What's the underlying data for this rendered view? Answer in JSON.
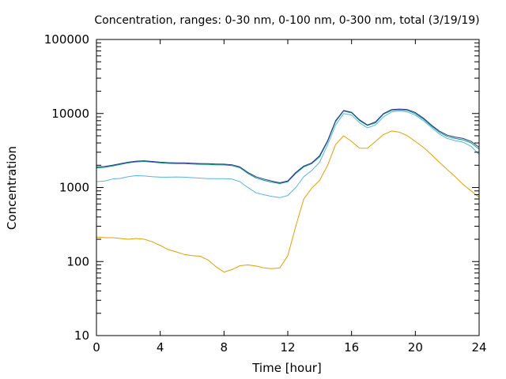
{
  "chart_data": {
    "type": "line",
    "title": "Concentration, ranges: 0-30 nm, 0-100 nm, 0-300 nm, total (3/19/19)",
    "xlabel": "Time [hour]",
    "ylabel": "Concentration",
    "xlim": [
      0,
      24
    ],
    "ylim": [
      10,
      100000
    ],
    "yscale": "log",
    "grid": false,
    "legend": "none",
    "x_ticks": [
      0,
      4,
      8,
      12,
      16,
      20,
      24
    ],
    "x_tick_labels": [
      "0",
      "4",
      "8",
      "12",
      "16",
      "20",
      "24"
    ],
    "y_ticks": [
      10,
      100,
      1000,
      10000,
      100000
    ],
    "y_tick_labels": [
      "10",
      "100",
      "1000",
      "10000",
      "100000"
    ],
    "series": [
      {
        "color": "#e69f00",
        "x": [
          0,
          0.5,
          1,
          1.5,
          2,
          2.5,
          3,
          3.5,
          4,
          4.5,
          5,
          5.5,
          6,
          6.5,
          7,
          7.5,
          8,
          8.5,
          9,
          9.5,
          10,
          10.5,
          11,
          11.5,
          12,
          12.5,
          13,
          13.5,
          14,
          14.5,
          15,
          15.5,
          16,
          16.5,
          17,
          17.5,
          18,
          18.5,
          19,
          19.5,
          20,
          20.5,
          21,
          21.5,
          22,
          22.5,
          23,
          23.5,
          24
        ],
        "y": [
          215,
          210,
          210,
          205,
          200,
          205,
          200,
          185,
          165,
          145,
          135,
          125,
          120,
          118,
          105,
          85,
          72,
          78,
          88,
          90,
          87,
          82,
          80,
          82,
          120,
          300,
          700,
          980,
          1250,
          2000,
          3800,
          5000,
          4200,
          3400,
          3400,
          4200,
          5200,
          5800,
          5600,
          5000,
          4200,
          3500,
          2800,
          2200,
          1750,
          1400,
          1100,
          900,
          740
        ]
      },
      {
        "color": "#56b4e9",
        "x": [
          0,
          0.5,
          1,
          1.5,
          2,
          2.5,
          3,
          3.5,
          4,
          4.5,
          5,
          5.5,
          6,
          6.5,
          7,
          7.5,
          8,
          8.5,
          9,
          9.5,
          10,
          10.5,
          11,
          11.5,
          12,
          12.5,
          13,
          13.5,
          14,
          14.5,
          15,
          15.5,
          16,
          16.5,
          17,
          17.5,
          18,
          18.5,
          19,
          19.5,
          20,
          20.5,
          21,
          21.5,
          22,
          22.5,
          23,
          23.5,
          24
        ],
        "y": [
          1200,
          1220,
          1300,
          1330,
          1400,
          1450,
          1430,
          1400,
          1380,
          1380,
          1390,
          1380,
          1360,
          1340,
          1320,
          1320,
          1320,
          1300,
          1200,
          1000,
          850,
          800,
          760,
          730,
          780,
          1000,
          1400,
          1700,
          2200,
          3800,
          7000,
          10000,
          9500,
          7500,
          6400,
          7000,
          9000,
          10500,
          10800,
          10500,
          9500,
          8000,
          6500,
          5300,
          4600,
          4300,
          4100,
          3600,
          2800
        ]
      },
      {
        "color": "#009e73",
        "x": [
          0,
          0.5,
          1,
          1.5,
          2,
          2.5,
          3,
          3.5,
          4,
          4.5,
          5,
          5.5,
          6,
          6.5,
          7,
          7.5,
          8,
          8.5,
          9,
          9.5,
          10,
          10.5,
          11,
          11.5,
          12,
          12.5,
          13,
          13.5,
          14,
          14.5,
          15,
          15.5,
          16,
          16.5,
          17,
          17.5,
          18,
          18.5,
          19,
          19.5,
          20,
          20.5,
          21,
          21.5,
          22,
          22.5,
          23,
          23.5,
          24
        ],
        "y": [
          1850,
          1870,
          1950,
          2050,
          2150,
          2220,
          2250,
          2200,
          2150,
          2120,
          2100,
          2100,
          2080,
          2060,
          2050,
          2030,
          2020,
          1980,
          1850,
          1550,
          1350,
          1250,
          1180,
          1130,
          1200,
          1550,
          1900,
          2100,
          2600,
          4200,
          7800,
          10800,
          10200,
          8000,
          6900,
          7500,
          9800,
          11000,
          11200,
          11000,
          10000,
          8400,
          6800,
          5600,
          4900,
          4600,
          4400,
          4000,
          3300
        ]
      },
      {
        "color": "#2e3192",
        "x": [
          0,
          0.5,
          1,
          1.5,
          2,
          2.5,
          3,
          3.5,
          4,
          4.5,
          5,
          5.5,
          6,
          6.5,
          7,
          7.5,
          8,
          8.5,
          9,
          9.5,
          10,
          10.5,
          11,
          11.5,
          12,
          12.5,
          13,
          13.5,
          14,
          14.5,
          15,
          15.5,
          16,
          16.5,
          17,
          17.5,
          18,
          18.5,
          19,
          19.5,
          20,
          20.5,
          21,
          21.5,
          22,
          22.5,
          23,
          23.5,
          24
        ],
        "y": [
          1900,
          1920,
          2000,
          2100,
          2200,
          2270,
          2300,
          2250,
          2200,
          2170,
          2150,
          2150,
          2130,
          2110,
          2100,
          2080,
          2070,
          2030,
          1900,
          1600,
          1400,
          1300,
          1220,
          1160,
          1230,
          1600,
          1950,
          2150,
          2700,
          4300,
          8000,
          11000,
          10400,
          8200,
          7000,
          7700,
          10000,
          11300,
          11500,
          11300,
          10300,
          8700,
          7000,
          5800,
          5100,
          4800,
          4600,
          4200,
          3500
        ]
      }
    ]
  }
}
